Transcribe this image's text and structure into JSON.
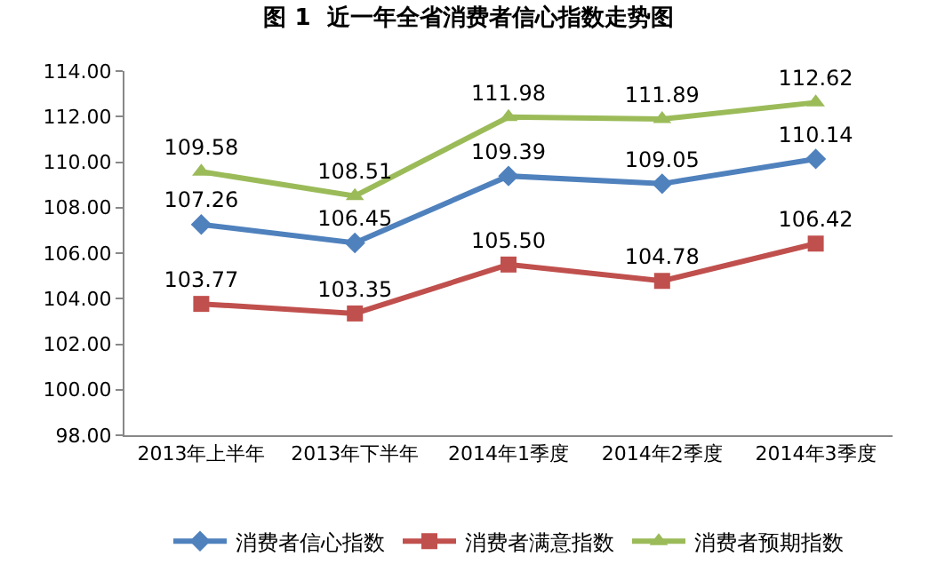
{
  "chart_data": {
    "type": "line",
    "title": "图 1  近一年全省消费者信心指数走势图",
    "categories": [
      "2013年上半年",
      "2013年下半年",
      "2014年1季度",
      "2014年2季度",
      "2014年3季度"
    ],
    "series": [
      {
        "name": "消费者信心指数",
        "color": "#4f81bd",
        "marker": "diamond",
        "values": [
          107.26,
          106.45,
          109.39,
          109.05,
          110.14
        ],
        "value_labels": [
          "107.26",
          "106.45",
          "109.39",
          "109.05",
          "110.14"
        ]
      },
      {
        "name": "消费者满意指数",
        "color": "#c0504d",
        "marker": "square",
        "values": [
          103.77,
          103.35,
          105.5,
          104.78,
          106.42
        ],
        "value_labels": [
          "103.77",
          "103.35",
          "105.50",
          "104.78",
          "106.42"
        ]
      },
      {
        "name": "消费者预期指数",
        "color": "#9bbb59",
        "marker": "triangle",
        "values": [
          109.58,
          108.51,
          111.98,
          111.89,
          112.62
        ],
        "value_labels": [
          "109.58",
          "108.51",
          "111.98",
          "111.89",
          "112.62"
        ]
      }
    ],
    "ylim": [
      98,
      114
    ],
    "yticks": [
      {
        "value": 98,
        "label": "98.00"
      },
      {
        "value": 100,
        "label": "100.00"
      },
      {
        "value": 102,
        "label": "102.00"
      },
      {
        "value": 104,
        "label": "104.00"
      },
      {
        "value": 106,
        "label": "106.00"
      },
      {
        "value": 108,
        "label": "108.00"
      },
      {
        "value": 110,
        "label": "110.00"
      },
      {
        "value": 112,
        "label": "112.00"
      },
      {
        "value": 114,
        "label": "114.00"
      }
    ],
    "legend": "bottom",
    "line_style": "solid"
  }
}
